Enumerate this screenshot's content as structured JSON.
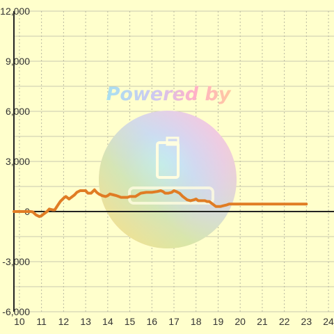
{
  "watermark": {
    "text": "Powered by"
  },
  "colors": {
    "background": "#ffffcc",
    "grid": "#c8c8b0",
    "axis": "#222222",
    "line": "#e07c24"
  },
  "chart_data": {
    "type": "line",
    "title": "",
    "xlabel": "",
    "ylabel": "",
    "xlim": [
      9.75,
      24.25
    ],
    "ylim": [
      -6000,
      12000
    ],
    "grid": true,
    "x_ticks": [
      10,
      11,
      12,
      13,
      14,
      15,
      16,
      17,
      18,
      19,
      20,
      21,
      22,
      23,
      24
    ],
    "x_tick_labels": [
      "10",
      "11",
      "12",
      "13",
      "14",
      "15",
      "16",
      "17",
      "18",
      "19",
      "20",
      "21",
      "22",
      "23",
      "24"
    ],
    "y_ticks": [
      -6000,
      -3000,
      0,
      3000,
      6000,
      9000,
      12000
    ],
    "y_tick_labels": [
      "-6,000",
      "-3,000",
      "0",
      "3,000",
      "6,000",
      "9,000",
      "12,000"
    ],
    "series": [
      {
        "color": "#e07c24",
        "x": [
          9.75,
          10.25,
          10.5,
          10.6,
          10.75,
          10.9,
          11.0,
          11.1,
          11.25,
          11.35,
          11.5,
          11.6,
          11.75,
          11.85,
          12.0,
          12.1,
          12.25,
          12.4,
          12.5,
          12.6,
          12.75,
          12.9,
          13.0,
          13.1,
          13.25,
          13.4,
          13.5,
          13.6,
          13.75,
          13.9,
          14.0,
          14.1,
          14.25,
          14.4,
          14.5,
          14.6,
          14.75,
          14.9,
          15.0,
          15.25,
          15.5,
          15.75,
          16.0,
          16.25,
          16.4,
          16.5,
          16.6,
          16.75,
          16.9,
          17.0,
          17.1,
          17.25,
          17.4,
          17.5,
          17.6,
          17.75,
          17.9,
          18.0,
          18.1,
          18.25,
          18.4,
          18.5,
          18.6,
          18.75,
          18.9,
          19.0,
          19.1,
          19.25,
          19.4,
          19.5,
          19.6,
          19.75,
          19.9,
          20.0,
          20.5,
          21.0,
          21.5,
          22.0,
          22.5,
          22.75,
          23.0
        ],
        "y": [
          0,
          0,
          0,
          -20,
          -200,
          -300,
          -250,
          -150,
          0,
          150,
          100,
          100,
          400,
          600,
          800,
          900,
          750,
          900,
          1000,
          1150,
          1250,
          1250,
          1250,
          1100,
          1100,
          1300,
          1150,
          1050,
          950,
          900,
          950,
          1050,
          1000,
          950,
          900,
          850,
          850,
          850,
          900,
          900,
          1100,
          1150,
          1150,
          1200,
          1250,
          1200,
          1100,
          1100,
          1150,
          1250,
          1200,
          1100,
          900,
          800,
          700,
          650,
          700,
          750,
          650,
          650,
          650,
          600,
          600,
          450,
          300,
          300,
          300,
          350,
          400,
          450,
          450,
          450,
          450,
          450,
          450,
          450,
          450,
          450,
          450,
          450,
          450
        ]
      }
    ]
  }
}
